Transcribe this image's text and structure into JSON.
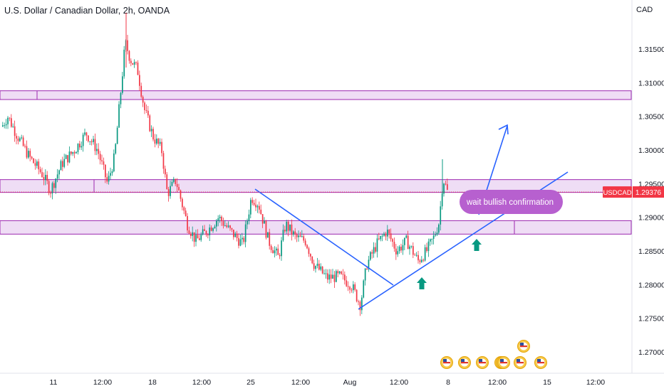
{
  "header": {
    "title": "U.S. Dollar / Canadian Dollar, 2h, OANDA",
    "currency": "CAD"
  },
  "chart_data": {
    "type": "candlestick",
    "symbol": "USDCAD",
    "last_price": "1.29376",
    "y_ticks": [
      "1.31500",
      "1.31000",
      "1.30500",
      "1.30000",
      "1.29500",
      "1.29000",
      "1.28500",
      "1.28000",
      "1.27500",
      "1.27000"
    ],
    "y_tick_values": [
      1.315,
      1.31,
      1.305,
      1.3,
      1.295,
      1.29,
      1.285,
      1.28,
      1.275,
      1.27
    ],
    "ylim": [
      1.2663,
      1.3212
    ],
    "x_ticks": [
      "11",
      "12:00",
      "18",
      "12:00",
      "25",
      "12:00",
      "Aug",
      "12:00",
      "8",
      "12:00",
      "15",
      "12:00"
    ],
    "annotation": "wait bullish confirmation",
    "zones": [
      {
        "from": 1.3075,
        "to": 1.3088
      },
      {
        "from": 1.2937,
        "to": 1.2956
      },
      {
        "from": 1.2875,
        "to": 1.2895
      }
    ],
    "colors": {
      "up": "#089981",
      "down": "#f23645",
      "zone_fill": "#ead2f2",
      "zone_border": "#9c27b0",
      "trendline": "#2962ff",
      "annotation_bg": "#b760cf",
      "arrow": "#089981",
      "price_label": "#f23645"
    }
  }
}
